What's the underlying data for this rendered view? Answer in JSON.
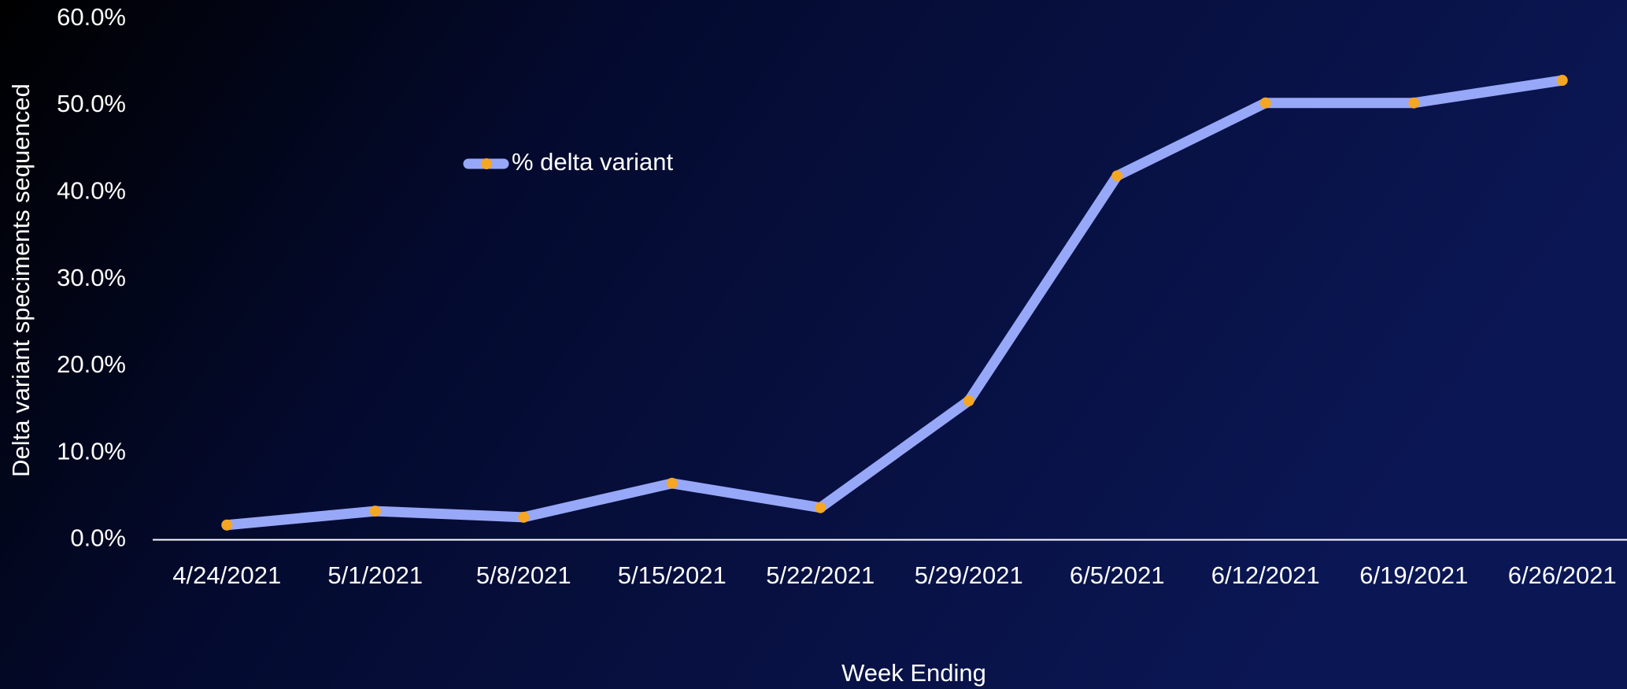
{
  "chart_data": {
    "type": "line",
    "x_label": "Week Ending",
    "y_label": "Delta variant speciments sequenced",
    "categories": [
      "4/24/2021",
      "5/1/2021",
      "5/8/2021",
      "5/15/2021",
      "5/22/2021",
      "5/29/2021",
      "6/5/2021",
      "6/12/2021",
      "6/19/2021",
      "6/26/2021"
    ],
    "series": [
      {
        "name": "% delta variant",
        "color": "#98a8f8",
        "marker_color": "#f5a623",
        "values": [
          1.7,
          3.3,
          2.6,
          6.5,
          3.7,
          16.0,
          41.9,
          50.3,
          50.3,
          52.9
        ]
      }
    ],
    "ylim": [
      0,
      60
    ],
    "yticks": [
      {
        "value": 0,
        "label": "0.0%"
      },
      {
        "value": 10,
        "label": "10.0%"
      },
      {
        "value": 20,
        "label": "20.0%"
      },
      {
        "value": 30,
        "label": "30.0%"
      },
      {
        "value": 40,
        "label": "40.0%"
      },
      {
        "value": 50,
        "label": "50.0%"
      },
      {
        "value": 60,
        "label": "60.0%"
      }
    ],
    "grid": false,
    "legend": "top-left"
  }
}
